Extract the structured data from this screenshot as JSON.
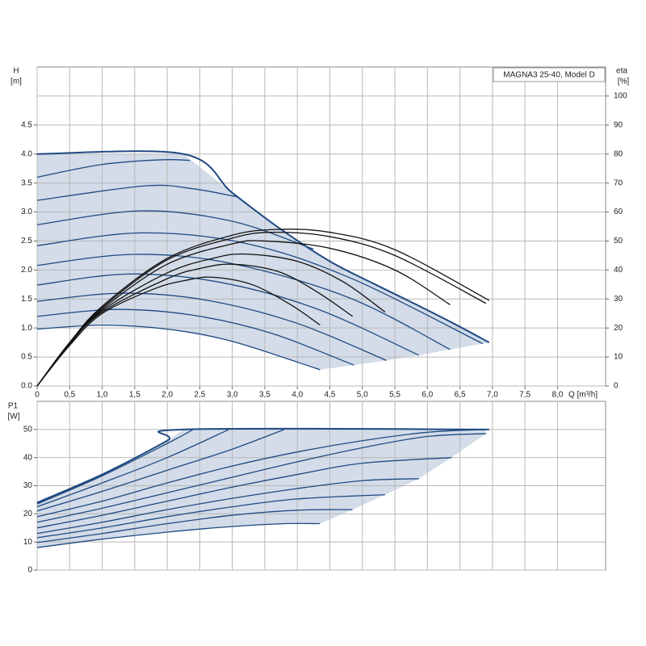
{
  "chart_data": [
    {
      "type": "line",
      "title": "MAGNA3 25-40, Model D",
      "ylabel": "H",
      "yunit": "[m]",
      "y2label": "eta",
      "y2unit": "[%]",
      "xlabel": "Q [m³/h]",
      "xlim": [
        0,
        8.74
      ],
      "ylim": [
        0,
        5.5
      ],
      "y2lim": [
        0,
        110
      ],
      "xticks": [
        0,
        {
          "value": 0.5,
          "label": "0,5"
        },
        {
          "value": 1,
          "label": "1,0"
        },
        {
          "value": 1.5,
          "label": "1,5"
        },
        {
          "value": 2,
          "label": "2,0"
        },
        {
          "value": 2.5,
          "label": "2,5"
        },
        {
          "value": 3,
          "label": "3,0"
        },
        {
          "value": 3.5,
          "label": "3,5"
        },
        {
          "value": 4,
          "label": "4,0"
        },
        {
          "value": 4.5,
          "label": "4,5"
        },
        {
          "value": 5,
          "label": "5,0"
        },
        {
          "value": 5.5,
          "label": "5,5"
        },
        {
          "value": 6,
          "label": "6,0"
        },
        {
          "value": 6.5,
          "label": "6,5"
        },
        {
          "value": 7,
          "label": "7,0"
        },
        {
          "value": 7.5,
          "label": "7,5"
        },
        {
          "value": 8,
          "label": "8,0"
        }
      ],
      "yticks": [
        {
          "value": 0,
          "label": "0.0"
        },
        0.5,
        {
          "value": 1,
          "label": "1.0"
        },
        1.5,
        {
          "value": 2,
          "label": "2.0"
        },
        2.5,
        {
          "value": 3,
          "label": "3.0"
        },
        3.5,
        {
          "value": 4,
          "label": "4.0"
        },
        4.5
      ],
      "y2ticks": [
        0,
        10,
        20,
        30,
        40,
        50,
        60,
        70,
        80,
        90,
        100
      ],
      "grid": true,
      "fill_color": "#d3dce8",
      "series": [
        {
          "color": "#1f4a82",
          "x": [
            0,
            2.25,
            3.0,
            3.75,
            4.5,
            5.2,
            5.8,
            6.4,
            6.95
          ],
          "values": [
            4.0,
            4.0,
            3.33,
            2.7,
            2.15,
            1.75,
            1.42,
            1.08,
            0.75
          ]
        },
        {
          "color": "#1f4a82",
          "x": [
            0,
            1,
            1.9,
            2.35
          ],
          "values": [
            3.6,
            3.82,
            3.9,
            3.89
          ]
        },
        {
          "color": "#1f4a82",
          "x": [
            0,
            1.65,
            2.4,
            3.08
          ],
          "values": [
            3.2,
            3.45,
            3.4,
            3.26
          ]
        },
        {
          "color": "#1f4a82",
          "x": [
            0,
            1.6,
            3.0,
            4.25
          ],
          "values": [
            2.78,
            3.02,
            2.84,
            2.36
          ]
        },
        {
          "color": "#1f4a82",
          "x": [
            0,
            1.6,
            3.2,
            4.8,
            6.85
          ],
          "values": [
            2.42,
            2.64,
            2.46,
            1.87,
            0.73
          ]
        },
        {
          "color": "#1f4a82",
          "x": [
            0,
            1.5,
            3.0,
            4.8,
            6.35
          ],
          "values": [
            2.08,
            2.27,
            2.11,
            1.52,
            0.63
          ]
        },
        {
          "color": "#1f4a82",
          "x": [
            0,
            1.4,
            2.8,
            4.3,
            5.87
          ],
          "values": [
            1.74,
            1.93,
            1.79,
            1.33,
            0.53
          ]
        },
        {
          "color": "#1f4a82",
          "x": [
            0,
            1.3,
            2.6,
            4.0,
            5.37
          ],
          "values": [
            1.46,
            1.6,
            1.48,
            1.08,
            0.44
          ]
        },
        {
          "color": "#1f4a82",
          "x": [
            0,
            1.2,
            2.4,
            3.6,
            4.87
          ],
          "values": [
            1.2,
            1.32,
            1.22,
            0.91,
            0.36
          ]
        },
        {
          "color": "#1f4a82",
          "x": [
            0,
            1,
            2,
            3,
            4.35
          ],
          "values": [
            0.98,
            1.05,
            0.98,
            0.77,
            0.28
          ]
        },
        {
          "color": "#111111",
          "axis": "y2",
          "x": [
            0,
            0.5,
            1,
            2,
            3,
            3.7,
            4.5,
            5.5,
            6.95
          ],
          "values": [
            0,
            15,
            27.5,
            44,
            52,
            54,
            53,
            47,
            29.5
          ]
        },
        {
          "color": "#111111",
          "axis": "y2",
          "x": [
            0,
            0.5,
            1,
            2,
            3,
            3.6,
            4.5,
            5.5,
            6.9
          ],
          "values": [
            0,
            15,
            27,
            43.5,
            51,
            53,
            51.5,
            45,
            28.5
          ]
        },
        {
          "color": "#111111",
          "axis": "y2",
          "x": [
            0,
            0.5,
            1,
            2,
            3,
            3.5,
            4.5,
            5.5,
            6.35
          ],
          "values": [
            0,
            15,
            26.5,
            42,
            49,
            50,
            47.5,
            40,
            28
          ]
        },
        {
          "color": "#111111",
          "axis": "y2",
          "x": [
            0,
            0.5,
            1,
            2,
            2.7,
            3.2,
            4,
            4.7,
            5.35
          ],
          "values": [
            0,
            14.5,
            26,
            39,
            44,
            45.5,
            43,
            36,
            25.5
          ]
        },
        {
          "color": "#111111",
          "axis": "y2",
          "x": [
            0,
            0.5,
            1,
            2,
            2.5,
            3,
            3.7,
            4.3,
            4.85
          ],
          "values": [
            0,
            14.5,
            25.5,
            37,
            40.5,
            42,
            39.5,
            32.5,
            24
          ]
        },
        {
          "color": "#111111",
          "axis": "y2",
          "x": [
            0,
            0.5,
            1,
            1.8,
            2.3,
            2.7,
            3.3,
            3.9,
            4.35
          ],
          "values": [
            0,
            14,
            25,
            33.5,
            36.5,
            37.5,
            35,
            28,
            21
          ]
        }
      ]
    },
    {
      "type": "line",
      "ylabel": "P1",
      "yunit": "[W]",
      "xlim": [
        0,
        8.74
      ],
      "ylim": [
        0,
        60
      ],
      "yticks": [
        0,
        10,
        20,
        30,
        40,
        50
      ],
      "grid": true,
      "fill_color": "#d3dce8",
      "series": [
        {
          "color": "#1f4a82",
          "x": [
            0,
            1,
            2,
            2.25,
            6.95
          ],
          "values": [
            24,
            34,
            46,
            50,
            50
          ]
        },
        {
          "color": "#1f4a82",
          "x": [
            0,
            1,
            2,
            2.4
          ],
          "values": [
            23.5,
            33.5,
            45,
            50
          ]
        },
        {
          "color": "#1f4a82",
          "x": [
            0,
            1,
            2,
            2.95
          ],
          "values": [
            22.5,
            31,
            40,
            50
          ]
        },
        {
          "color": "#1f4a82",
          "x": [
            0,
            1,
            2,
            3,
            3.8
          ],
          "values": [
            21,
            28,
            35.5,
            43,
            50
          ]
        },
        {
          "color": "#1f4a82",
          "x": [
            0,
            1,
            2,
            3,
            4,
            5,
            6,
            6.9
          ],
          "values": [
            19,
            24.5,
            31,
            37,
            42,
            46,
            49,
            50
          ]
        },
        {
          "color": "#1f4a82",
          "x": [
            0,
            1,
            2,
            3,
            4,
            5,
            6,
            6.9
          ],
          "values": [
            17,
            22,
            27.5,
            33,
            38.5,
            43.5,
            47.5,
            48.5
          ]
        },
        {
          "color": "#1f4a82",
          "x": [
            0,
            1,
            2,
            3,
            4,
            5,
            6.37
          ],
          "values": [
            15,
            19.5,
            24.5,
            29.5,
            34,
            38,
            40
          ]
        },
        {
          "color": "#1f4a82",
          "x": [
            0,
            1,
            2,
            3,
            4,
            5,
            5.87
          ],
          "values": [
            13,
            17,
            21.5,
            25.5,
            29,
            31.8,
            32.5
          ]
        },
        {
          "color": "#1f4a82",
          "x": [
            0,
            1,
            2,
            3,
            4,
            5.35
          ],
          "values": [
            11.5,
            15,
            19,
            22.5,
            25.3,
            26.8
          ]
        },
        {
          "color": "#1f4a82",
          "x": [
            0,
            1,
            2,
            3,
            4,
            4.85
          ],
          "values": [
            9.8,
            13,
            16.5,
            19.5,
            21.3,
            21.5
          ]
        },
        {
          "color": "#1f4a82",
          "x": [
            0,
            1,
            2,
            3,
            3.8,
            4.35
          ],
          "values": [
            8,
            11,
            13.5,
            15.5,
            16.5,
            16.5
          ]
        }
      ]
    }
  ]
}
